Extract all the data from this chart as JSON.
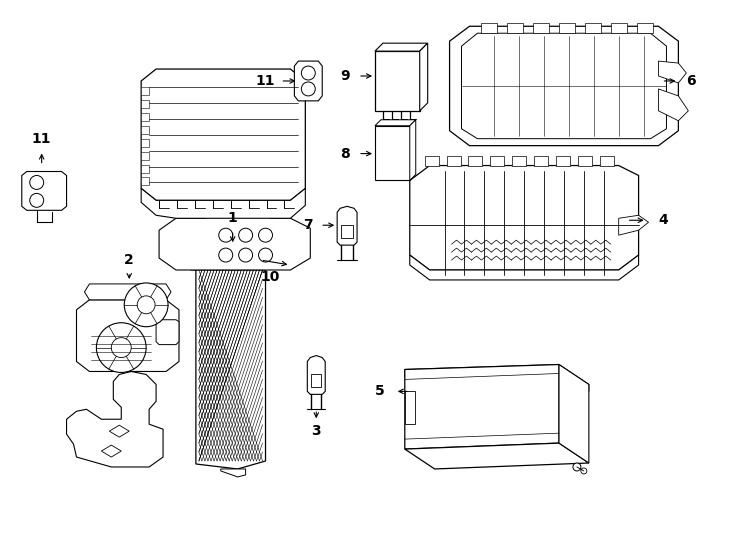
{
  "background_color": "#ffffff",
  "fig_width": 7.34,
  "fig_height": 5.4,
  "dpi": 100
}
